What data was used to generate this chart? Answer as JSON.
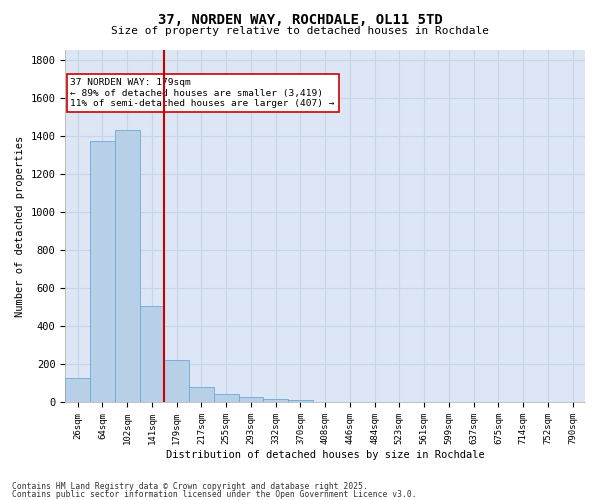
{
  "title": "37, NORDEN WAY, ROCHDALE, OL11 5TD",
  "subtitle": "Size of property relative to detached houses in Rochdale",
  "xlabel": "Distribution of detached houses by size in Rochdale",
  "ylabel": "Number of detached properties",
  "categories": [
    "26sqm",
    "64sqm",
    "102sqm",
    "141sqm",
    "179sqm",
    "217sqm",
    "255sqm",
    "293sqm",
    "332sqm",
    "370sqm",
    "408sqm",
    "446sqm",
    "484sqm",
    "523sqm",
    "561sqm",
    "599sqm",
    "637sqm",
    "675sqm",
    "714sqm",
    "752sqm",
    "790sqm"
  ],
  "values": [
    130,
    1370,
    1430,
    505,
    225,
    80,
    47,
    27,
    18,
    15,
    0,
    0,
    0,
    0,
    0,
    0,
    0,
    0,
    0,
    0,
    0
  ],
  "bar_color": "#b8cfe8",
  "bar_edge_color": "#6aaad4",
  "vline_index": 4,
  "vline_color": "#cc0000",
  "annotation_text": "37 NORDEN WAY: 179sqm\n← 89% of detached houses are smaller (3,419)\n11% of semi-detached houses are larger (407) →",
  "annotation_box_color": "#ffffff",
  "annotation_box_edge": "#cc0000",
  "ylim": [
    0,
    1850
  ],
  "yticks": [
    0,
    200,
    400,
    600,
    800,
    1000,
    1200,
    1400,
    1600,
    1800
  ],
  "grid_color": "#c8d4e8",
  "background_color": "#dce6f5",
  "footnote1": "Contains HM Land Registry data © Crown copyright and database right 2025.",
  "footnote2": "Contains public sector information licensed under the Open Government Licence v3.0."
}
